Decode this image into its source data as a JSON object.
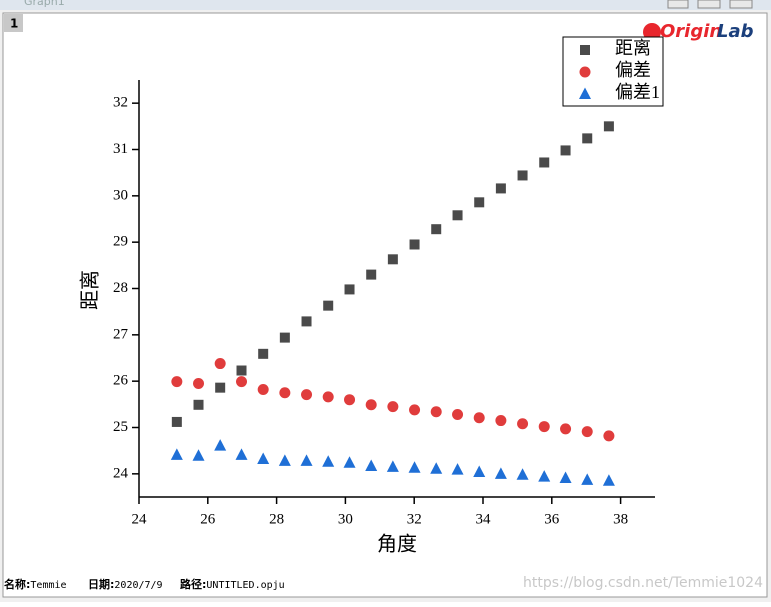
{
  "window": {
    "title": "Graph1",
    "page_tab": "1",
    "logo": [
      "Origin",
      "Lab"
    ]
  },
  "footer": [
    {
      "label": "名称:",
      "value": "Temmie"
    },
    {
      "label": "日期:",
      "value": "2020/7/9"
    },
    {
      "label": "路径:",
      "value": "UNTITLED.opju"
    }
  ],
  "watermark": "https://blog.csdn.net/Temmie1024",
  "chart_data": {
    "type": "scatter",
    "x_label": "角度",
    "y_label": "距离",
    "x": [
      25.1,
      25.73,
      26.36,
      26.98,
      27.61,
      28.24,
      28.87,
      29.5,
      30.12,
      30.75,
      31.38,
      32.01,
      32.64,
      33.26,
      33.89,
      34.52,
      35.15,
      35.78,
      36.4,
      37.03,
      37.66
    ],
    "series": [
      {
        "name": "距离",
        "color": "#4a4a4a",
        "marker": "square",
        "values": [
          25.12,
          25.49,
          25.86,
          26.23,
          26.59,
          26.94,
          27.29,
          27.63,
          27.98,
          28.3,
          28.63,
          28.95,
          29.28,
          29.58,
          29.86,
          30.16,
          30.44,
          30.72,
          30.98,
          31.24,
          31.5
        ]
      },
      {
        "name": "偏差",
        "color": "#e03c3c",
        "marker": "circle",
        "values": [
          25.99,
          25.95,
          26.38,
          25.99,
          25.82,
          25.75,
          25.71,
          25.66,
          25.6,
          25.49,
          25.45,
          25.38,
          25.34,
          25.28,
          25.21,
          25.15,
          25.08,
          25.02,
          24.97,
          24.91,
          24.82
        ]
      },
      {
        "name": "偏差1",
        "color": "#1f6fd6",
        "marker": "triangle",
        "values": [
          24.41,
          24.39,
          24.61,
          24.41,
          24.32,
          24.28,
          24.28,
          24.26,
          24.24,
          24.17,
          24.15,
          24.13,
          24.11,
          24.09,
          24.04,
          24.0,
          23.98,
          23.94,
          23.91,
          23.87,
          23.85
        ]
      }
    ],
    "xlim": [
      24,
      39
    ],
    "xticks": [
      24,
      26,
      28,
      30,
      32,
      34,
      36,
      38
    ],
    "ylim": [
      23.5,
      32.5
    ],
    "yticks": [
      24,
      25,
      26,
      27,
      28,
      29,
      30,
      31,
      32
    ],
    "legend": "upper right"
  }
}
